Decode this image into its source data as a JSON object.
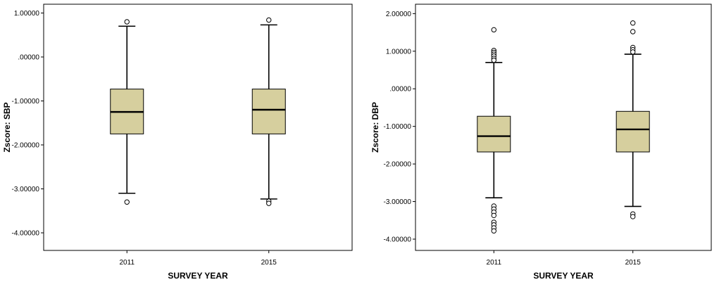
{
  "chart_data": [
    {
      "type": "boxplot",
      "xlabel": "SURVEY YEAR",
      "ylabel": "Zscore:  SBP",
      "ylim": [
        -4.4,
        1.2
      ],
      "yticks": [
        1,
        0,
        -1,
        -2,
        -3,
        -4
      ],
      "ytick_labels": [
        "1.00000",
        ".00000",
        "-1.00000",
        "-2.00000",
        "-3.00000",
        "-4.00000"
      ],
      "grid": false,
      "box_color": "#d6cf9e",
      "categories": [
        "2011",
        "2015"
      ],
      "boxes": [
        {
          "category": "2011",
          "whisker_low": -3.1,
          "q1": -1.75,
          "median": -1.25,
          "q3": -0.73,
          "whisker_high": 0.7,
          "outliers": [
            0.8,
            -3.3
          ]
        },
        {
          "category": "2015",
          "whisker_low": -3.23,
          "q1": -1.75,
          "median": -1.2,
          "q3": -0.73,
          "whisker_high": 0.73,
          "outliers": [
            0.84,
            -3.28,
            -3.33
          ]
        }
      ]
    },
    {
      "type": "boxplot",
      "xlabel": "SURVEY YEAR",
      "ylabel": "Zscore:  DBP",
      "ylim": [
        -4.3,
        2.25
      ],
      "yticks": [
        2,
        1,
        0,
        -1,
        -2,
        -3,
        -4
      ],
      "ytick_labels": [
        "2.00000",
        "1.00000",
        ".00000",
        "-1.00000",
        "-2.00000",
        "-3.00000",
        "-4.00000"
      ],
      "grid": false,
      "box_color": "#d6cf9e",
      "categories": [
        "2011",
        "2015"
      ],
      "boxes": [
        {
          "category": "2011",
          "whisker_low": -2.9,
          "q1": -1.68,
          "median": -1.26,
          "q3": -0.73,
          "whisker_high": 0.7,
          "outliers": [
            1.57,
            1.02,
            0.97,
            0.92,
            0.87,
            0.81,
            0.76,
            -3.12,
            -3.2,
            -3.28,
            -3.37,
            -3.55,
            -3.62,
            -3.7,
            -3.78
          ]
        },
        {
          "category": "2015",
          "whisker_low": -3.13,
          "q1": -1.68,
          "median": -1.08,
          "q3": -0.6,
          "whisker_high": 0.92,
          "outliers": [
            1.75,
            1.52,
            1.1,
            1.04,
            0.98,
            -3.33,
            -3.4
          ]
        }
      ]
    }
  ]
}
